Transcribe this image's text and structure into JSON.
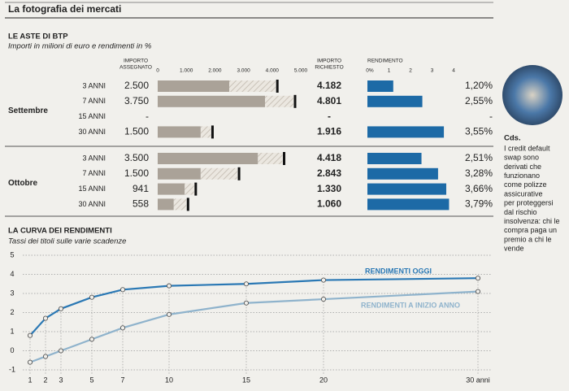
{
  "header": {
    "title": "La fotografia dei mercati"
  },
  "sidebar": {
    "title": "Cds.",
    "text_lines": [
      "I credit default",
      "swap sono",
      "derivati che",
      "funzionano",
      "come polizze",
      "assicurative",
      "per proteggersi",
      "dal rischio",
      "insolvenza: chi le",
      "compra paga un",
      "premio a chi le",
      "vende"
    ]
  },
  "chart_data": [
    {
      "type": "bar",
      "title": "LE ASTE DI BTP",
      "subtitle": "Importi in milioni di euro e rendimenti in %",
      "columns": {
        "assigned": [
          "IMPORTO",
          "ASSEGNATO"
        ],
        "requested": [
          "IMPORTO",
          "RICHIESTO"
        ],
        "yield": [
          "RENDIMENTO"
        ]
      },
      "xlim": [
        0,
        5000
      ],
      "xticks": [
        0,
        {
          "value": 1000,
          "label": "1.000"
        },
        {
          "value": 2000,
          "label": "2.000"
        },
        {
          "value": 3000,
          "label": "3.000"
        },
        {
          "value": 4000,
          "label": "4.000"
        },
        {
          "value": 5000,
          "label": "5.000"
        }
      ],
      "yield_xlim": [
        0,
        4
      ],
      "yield_xticks": [
        {
          "value": 0,
          "label": "0%"
        },
        1,
        2,
        3,
        4
      ],
      "colors": {
        "assigned": "#aaa298",
        "requested": "#111111",
        "yield": "#1d6aa6"
      },
      "groups": [
        {
          "name": "Settembre",
          "categories": [
            "3 ANNI",
            "7 ANNI",
            "15 ANNI",
            "30 ANNI"
          ],
          "assigned": {
            "values": [
              2500,
              3750,
              null,
              1500
            ],
            "value_labels": [
              "2.500",
              "3.750",
              "-",
              "1.500"
            ]
          },
          "requested": {
            "values": [
              4182,
              4801,
              null,
              1916
            ],
            "value_labels": [
              "4.182",
              "4.801",
              "-",
              "1.916"
            ]
          },
          "yield": {
            "values": [
              1.2,
              2.55,
              null,
              3.55
            ],
            "value_labels": [
              "1,20%",
              "2,55%",
              "-",
              "3,55%"
            ]
          }
        },
        {
          "name": "Ottobre",
          "categories": [
            "3 ANNI",
            "7 ANNI",
            "15 ANNI",
            "30 ANNI"
          ],
          "assigned": {
            "values": [
              3500,
              1500,
              941,
              558
            ],
            "value_labels": [
              "3.500",
              "1.500",
              "941",
              "558"
            ]
          },
          "requested": {
            "values": [
              4418,
              2843,
              1330,
              1060
            ],
            "value_labels": [
              "4.418",
              "2.843",
              "1.330",
              "1.060"
            ]
          },
          "yield": {
            "values": [
              2.51,
              3.28,
              3.66,
              3.79
            ],
            "value_labels": [
              "2,51%",
              "3,28%",
              "3,66%",
              "3,79%"
            ]
          }
        }
      ]
    },
    {
      "type": "line",
      "title": "LA CURVA DEI RENDIMENTI",
      "subtitle": "Tassi dei titoli sulle varie scadenze",
      "x": [
        1,
        2,
        3,
        5,
        7,
        10,
        15,
        20,
        30
      ],
      "xlim": [
        0,
        31
      ],
      "xticks": [
        1,
        2,
        3,
        5,
        7,
        10,
        15,
        20,
        {
          "value": 30,
          "label": "30 anni"
        }
      ],
      "ylim": [
        -1.2,
        5.2
      ],
      "yticks": [
        -1,
        0,
        1,
        2,
        3,
        4,
        5
      ],
      "grid": true,
      "series": [
        {
          "name": "RENDIMENTI OGGI",
          "color": "#2a78b4",
          "values": [
            0.8,
            1.7,
            2.2,
            2.8,
            3.2,
            3.4,
            3.5,
            3.7,
            3.8
          ]
        },
        {
          "name": "RENDIMENTI A INIZIO ANNO",
          "color": "#8fb3cc",
          "values": [
            -0.6,
            -0.3,
            0.0,
            0.6,
            1.2,
            1.9,
            2.5,
            2.7,
            3.1
          ]
        }
      ]
    }
  ]
}
